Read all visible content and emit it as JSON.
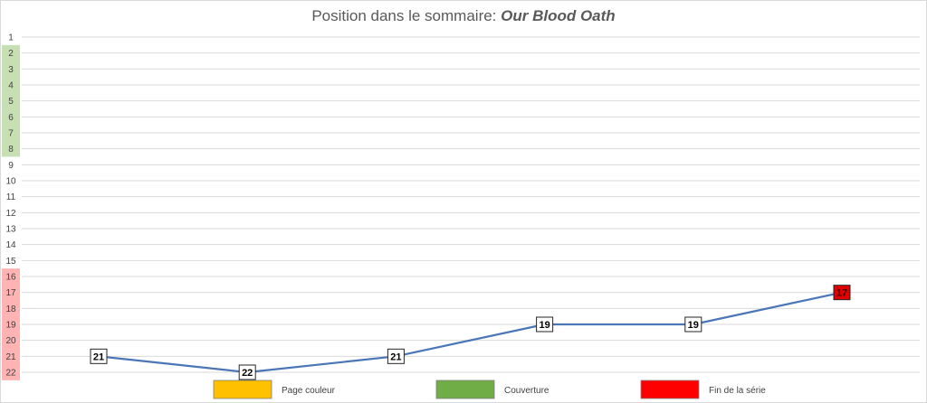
{
  "chart_data": {
    "type": "line",
    "title_prefix": "Position dans le sommaire: ",
    "title_emphasis": "Our Blood Oath",
    "y_axis": {
      "ticks": [
        1,
        2,
        3,
        4,
        5,
        6,
        7,
        8,
        9,
        10,
        11,
        12,
        13,
        14,
        15,
        16,
        17,
        18,
        19,
        20,
        21,
        22
      ],
      "reversed": true,
      "range": [
        1,
        22
      ],
      "bands": [
        {
          "from": 2,
          "to": 8,
          "color": "#c6e0b4"
        },
        {
          "from": 16,
          "to": 22,
          "color": "#ffb3b3"
        }
      ]
    },
    "grid": true,
    "series": [
      {
        "color": "#4a76b8",
        "values": [
          21,
          22,
          21,
          19,
          19,
          17
        ],
        "label_fill": [
          "#ffffff",
          "#ffffff",
          "#ffffff",
          "#ffffff",
          "#ffffff",
          "#e00000"
        ]
      }
    ],
    "legend": {
      "placement": "bottom",
      "items": [
        {
          "label": "Page couleur",
          "color": "#ffc000"
        },
        {
          "label": "Couverture",
          "color": "#70ad47"
        },
        {
          "label": "Fin de la série",
          "color": "#ff0000"
        }
      ]
    }
  }
}
